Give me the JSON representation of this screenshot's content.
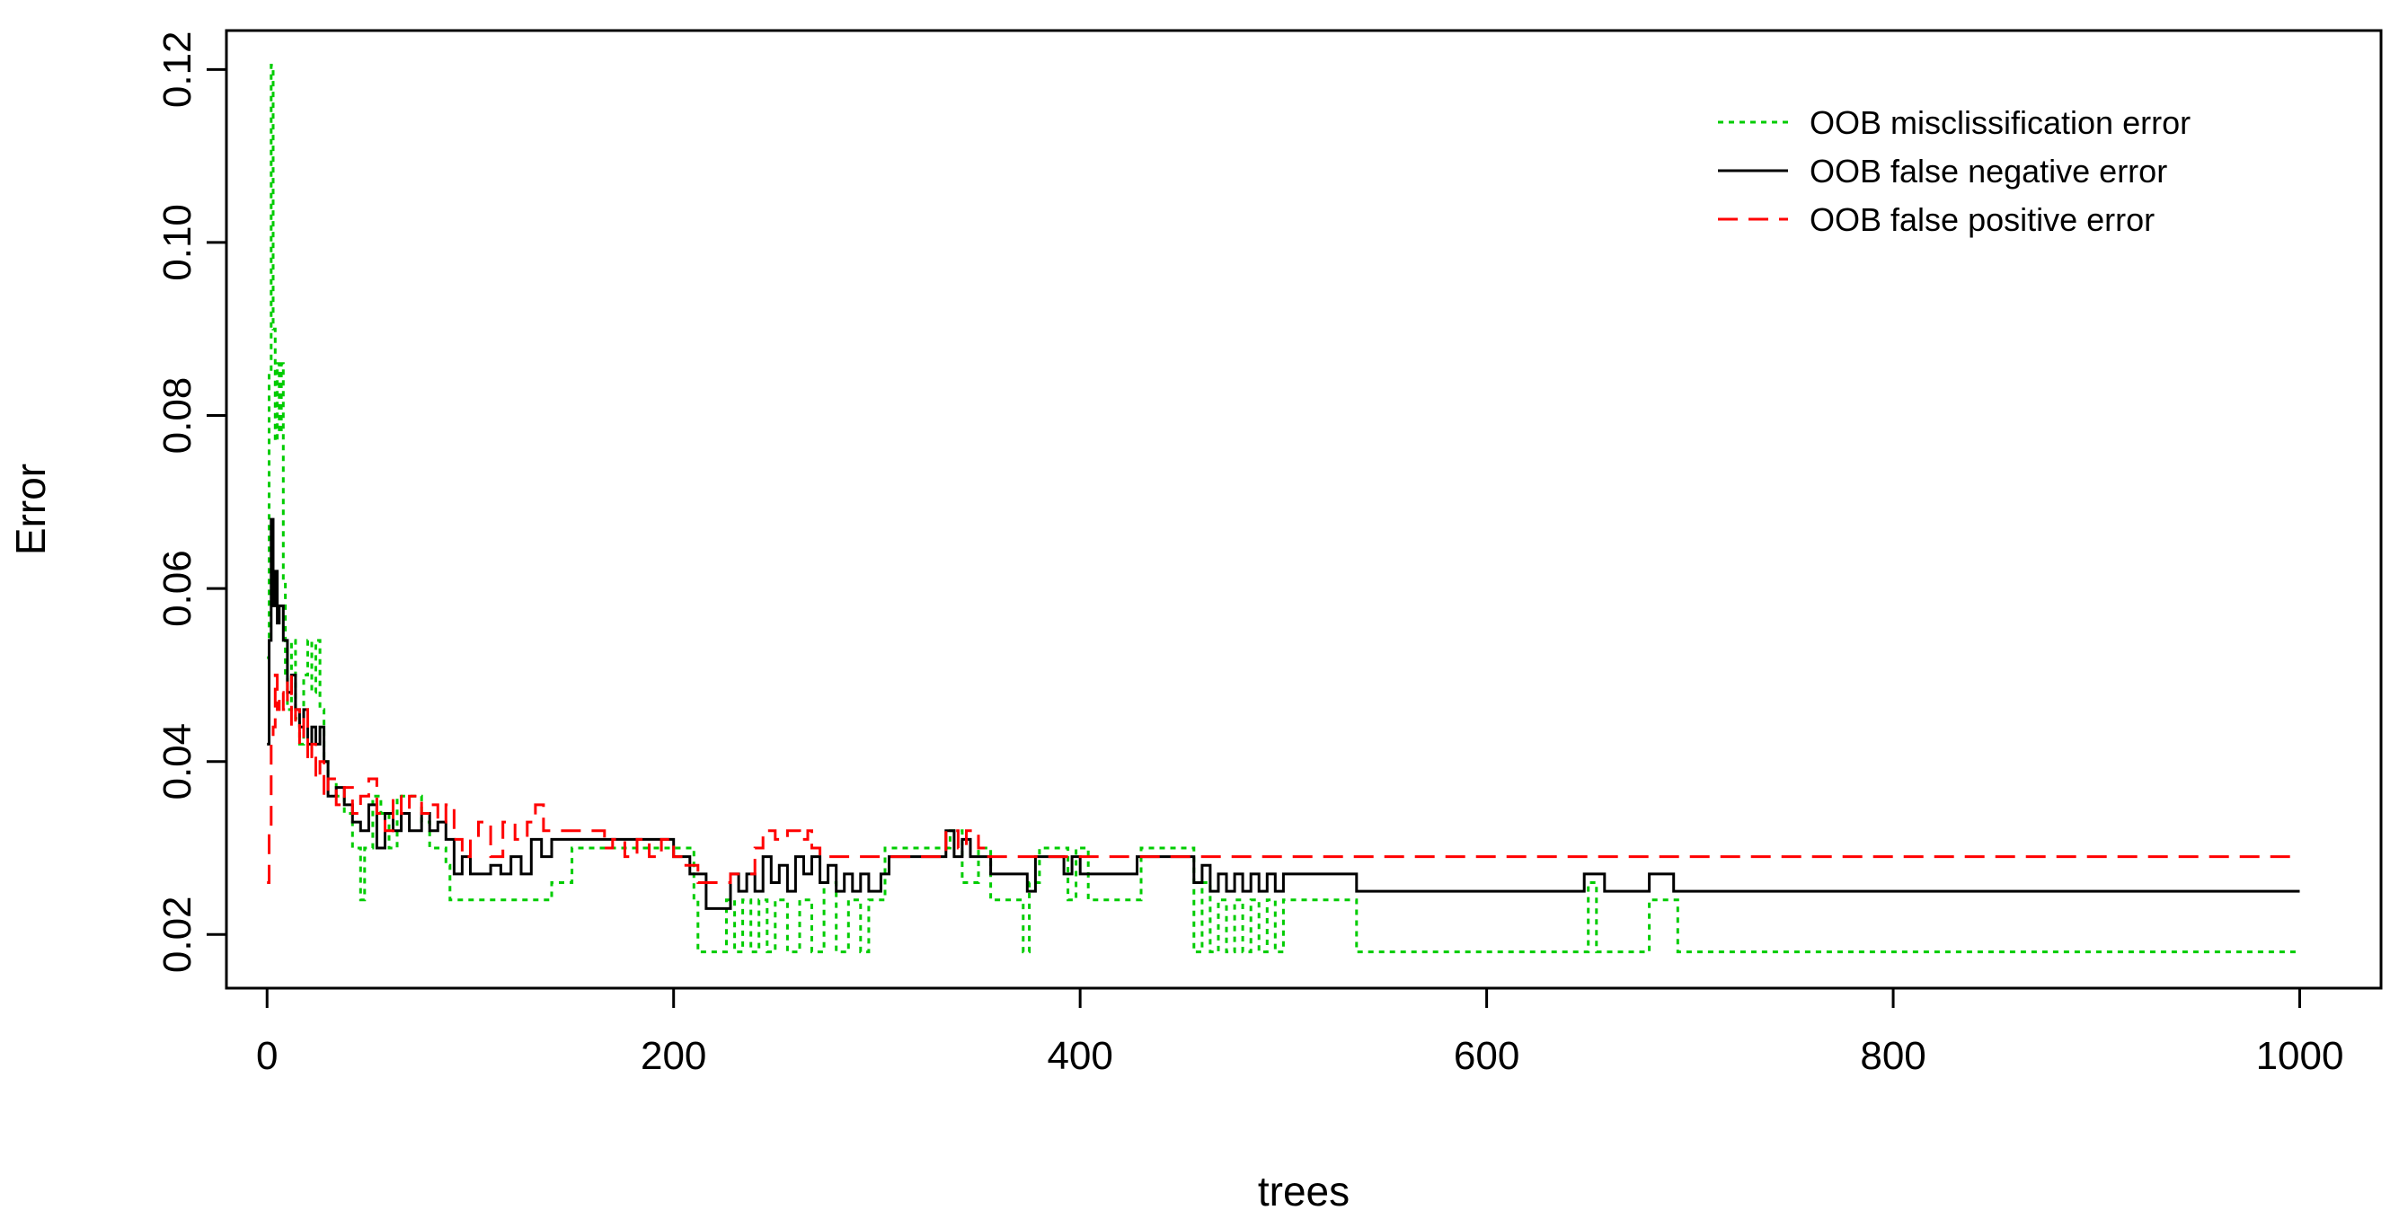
{
  "chart_data": {
    "type": "line",
    "title": "",
    "xlabel": "trees",
    "ylabel": "Error",
    "xlim": [
      -20,
      1040
    ],
    "ylim": [
      0.0138,
      0.1245
    ],
    "xticks": [
      0,
      200,
      400,
      600,
      800,
      1000
    ],
    "yticks": [
      0.02,
      0.04,
      0.06,
      0.08,
      0.1,
      0.12
    ],
    "xtick_labels": [
      "0",
      "200",
      "400",
      "600",
      "800",
      "1000"
    ],
    "ytick_labels": [
      "0.02",
      "0.04",
      "0.06",
      "0.08",
      "0.10",
      "0.12"
    ],
    "grid": false,
    "legend_position": "top-right",
    "series": [
      {
        "name": "OOB misclissification error",
        "color": "#00cc00",
        "dash": "dotted",
        "points": [
          [
            0,
            0.052
          ],
          [
            1,
            0.085
          ],
          [
            2,
            0.1205
          ],
          [
            3,
            0.09
          ],
          [
            4,
            0.077
          ],
          [
            5,
            0.086
          ],
          [
            6,
            0.078
          ],
          [
            7,
            0.086
          ],
          [
            8,
            0.061
          ],
          [
            9,
            0.05
          ],
          [
            10,
            0.046
          ],
          [
            12,
            0.054
          ],
          [
            14,
            0.045
          ],
          [
            16,
            0.042
          ],
          [
            18,
            0.05
          ],
          [
            20,
            0.054
          ],
          [
            22,
            0.048
          ],
          [
            24,
            0.054
          ],
          [
            26,
            0.046
          ],
          [
            28,
            0.04
          ],
          [
            30,
            0.038
          ],
          [
            34,
            0.036
          ],
          [
            38,
            0.034
          ],
          [
            42,
            0.03
          ],
          [
            46,
            0.024
          ],
          [
            48,
            0.03
          ],
          [
            52,
            0.036
          ],
          [
            56,
            0.034
          ],
          [
            60,
            0.03
          ],
          [
            64,
            0.036
          ],
          [
            70,
            0.036
          ],
          [
            76,
            0.033
          ],
          [
            80,
            0.03
          ],
          [
            84,
            0.03
          ],
          [
            88,
            0.028
          ],
          [
            90,
            0.024
          ],
          [
            94,
            0.024
          ],
          [
            100,
            0.024
          ],
          [
            120,
            0.024
          ],
          [
            140,
            0.026
          ],
          [
            150,
            0.03
          ],
          [
            170,
            0.03
          ],
          [
            190,
            0.03
          ],
          [
            205,
            0.03
          ],
          [
            210,
            0.024
          ],
          [
            212,
            0.018
          ],
          [
            222,
            0.018
          ],
          [
            226,
            0.024
          ],
          [
            230,
            0.018
          ],
          [
            234,
            0.024
          ],
          [
            238,
            0.018
          ],
          [
            242,
            0.024
          ],
          [
            246,
            0.018
          ],
          [
            250,
            0.024
          ],
          [
            256,
            0.018
          ],
          [
            262,
            0.024
          ],
          [
            268,
            0.018
          ],
          [
            274,
            0.026
          ],
          [
            280,
            0.018
          ],
          [
            286,
            0.024
          ],
          [
            292,
            0.018
          ],
          [
            296,
            0.024
          ],
          [
            304,
            0.03
          ],
          [
            330,
            0.03
          ],
          [
            336,
            0.032
          ],
          [
            342,
            0.026
          ],
          [
            350,
            0.03
          ],
          [
            356,
            0.024
          ],
          [
            362,
            0.024
          ],
          [
            368,
            0.024
          ],
          [
            372,
            0.018
          ],
          [
            375,
            0.026
          ],
          [
            380,
            0.03
          ],
          [
            390,
            0.03
          ],
          [
            394,
            0.024
          ],
          [
            398,
            0.03
          ],
          [
            404,
            0.024
          ],
          [
            414,
            0.024
          ],
          [
            424,
            0.024
          ],
          [
            430,
            0.03
          ],
          [
            444,
            0.03
          ],
          [
            454,
            0.03
          ],
          [
            456,
            0.018
          ],
          [
            460,
            0.026
          ],
          [
            464,
            0.018
          ],
          [
            468,
            0.024
          ],
          [
            472,
            0.018
          ],
          [
            476,
            0.024
          ],
          [
            480,
            0.018
          ],
          [
            484,
            0.024
          ],
          [
            488,
            0.018
          ],
          [
            492,
            0.024
          ],
          [
            496,
            0.018
          ],
          [
            500,
            0.024
          ],
          [
            534,
            0.024
          ],
          [
            536,
            0.018
          ],
          [
            646,
            0.018
          ],
          [
            650,
            0.026
          ],
          [
            654,
            0.018
          ],
          [
            676,
            0.018
          ],
          [
            680,
            0.024
          ],
          [
            690,
            0.024
          ],
          [
            694,
            0.018
          ],
          [
            1000,
            0.018
          ]
        ]
      },
      {
        "name": "OOB false negative error",
        "color": "#000000",
        "dash": "solid",
        "points": [
          [
            0,
            0.042
          ],
          [
            1,
            0.054
          ],
          [
            2,
            0.068
          ],
          [
            3,
            0.058
          ],
          [
            4,
            0.062
          ],
          [
            5,
            0.056
          ],
          [
            6,
            0.058
          ],
          [
            8,
            0.054
          ],
          [
            10,
            0.048
          ],
          [
            12,
            0.05
          ],
          [
            14,
            0.046
          ],
          [
            16,
            0.044
          ],
          [
            18,
            0.046
          ],
          [
            20,
            0.042
          ],
          [
            22,
            0.044
          ],
          [
            24,
            0.042
          ],
          [
            26,
            0.044
          ],
          [
            28,
            0.04
          ],
          [
            30,
            0.036
          ],
          [
            34,
            0.037
          ],
          [
            38,
            0.035
          ],
          [
            42,
            0.033
          ],
          [
            46,
            0.032
          ],
          [
            50,
            0.035
          ],
          [
            54,
            0.03
          ],
          [
            58,
            0.034
          ],
          [
            62,
            0.032
          ],
          [
            66,
            0.034
          ],
          [
            70,
            0.032
          ],
          [
            76,
            0.034
          ],
          [
            80,
            0.032
          ],
          [
            84,
            0.033
          ],
          [
            88,
            0.031
          ],
          [
            92,
            0.027
          ],
          [
            96,
            0.029
          ],
          [
            100,
            0.027
          ],
          [
            110,
            0.028
          ],
          [
            115,
            0.027
          ],
          [
            120,
            0.029
          ],
          [
            125,
            0.027
          ],
          [
            130,
            0.031
          ],
          [
            135,
            0.029
          ],
          [
            140,
            0.031
          ],
          [
            150,
            0.031
          ],
          [
            175,
            0.031
          ],
          [
            200,
            0.029
          ],
          [
            206,
            0.029
          ],
          [
            208,
            0.027
          ],
          [
            214,
            0.027
          ],
          [
            216,
            0.023
          ],
          [
            226,
            0.023
          ],
          [
            228,
            0.027
          ],
          [
            232,
            0.025
          ],
          [
            236,
            0.027
          ],
          [
            240,
            0.025
          ],
          [
            244,
            0.029
          ],
          [
            248,
            0.026
          ],
          [
            252,
            0.028
          ],
          [
            256,
            0.025
          ],
          [
            260,
            0.029
          ],
          [
            264,
            0.027
          ],
          [
            268,
            0.029
          ],
          [
            272,
            0.026
          ],
          [
            276,
            0.028
          ],
          [
            280,
            0.025
          ],
          [
            284,
            0.027
          ],
          [
            288,
            0.025
          ],
          [
            292,
            0.027
          ],
          [
            296,
            0.025
          ],
          [
            302,
            0.027
          ],
          [
            306,
            0.029
          ],
          [
            330,
            0.029
          ],
          [
            334,
            0.032
          ],
          [
            338,
            0.029
          ],
          [
            342,
            0.031
          ],
          [
            346,
            0.029
          ],
          [
            350,
            0.029
          ],
          [
            356,
            0.027
          ],
          [
            370,
            0.027
          ],
          [
            374,
            0.025
          ],
          [
            378,
            0.029
          ],
          [
            388,
            0.029
          ],
          [
            392,
            0.027
          ],
          [
            396,
            0.029
          ],
          [
            400,
            0.027
          ],
          [
            420,
            0.027
          ],
          [
            428,
            0.029
          ],
          [
            440,
            0.029
          ],
          [
            450,
            0.029
          ],
          [
            456,
            0.026
          ],
          [
            460,
            0.028
          ],
          [
            464,
            0.025
          ],
          [
            468,
            0.027
          ],
          [
            472,
            0.025
          ],
          [
            476,
            0.027
          ],
          [
            480,
            0.025
          ],
          [
            484,
            0.027
          ],
          [
            488,
            0.025
          ],
          [
            492,
            0.027
          ],
          [
            496,
            0.025
          ],
          [
            500,
            0.027
          ],
          [
            530,
            0.027
          ],
          [
            536,
            0.025
          ],
          [
            646,
            0.025
          ],
          [
            648,
            0.027
          ],
          [
            656,
            0.027
          ],
          [
            658,
            0.025
          ],
          [
            678,
            0.025
          ],
          [
            680,
            0.027
          ],
          [
            690,
            0.027
          ],
          [
            692,
            0.025
          ],
          [
            1000,
            0.025
          ]
        ]
      },
      {
        "name": "OOB false positive error",
        "color": "#ff0000",
        "dash": "dashed",
        "points": [
          [
            0,
            0.026
          ],
          [
            1,
            0.032
          ],
          [
            2,
            0.042
          ],
          [
            3,
            0.044
          ],
          [
            4,
            0.05
          ],
          [
            5,
            0.046
          ],
          [
            6,
            0.048
          ],
          [
            8,
            0.046
          ],
          [
            10,
            0.05
          ],
          [
            12,
            0.044
          ],
          [
            14,
            0.046
          ],
          [
            16,
            0.042
          ],
          [
            18,
            0.046
          ],
          [
            20,
            0.04
          ],
          [
            22,
            0.042
          ],
          [
            24,
            0.038
          ],
          [
            26,
            0.04
          ],
          [
            28,
            0.036
          ],
          [
            30,
            0.038
          ],
          [
            34,
            0.035
          ],
          [
            38,
            0.037
          ],
          [
            42,
            0.034
          ],
          [
            46,
            0.036
          ],
          [
            50,
            0.038
          ],
          [
            54,
            0.034
          ],
          [
            58,
            0.032
          ],
          [
            62,
            0.036
          ],
          [
            66,
            0.034
          ],
          [
            70,
            0.036
          ],
          [
            76,
            0.034
          ],
          [
            80,
            0.035
          ],
          [
            84,
            0.033
          ],
          [
            88,
            0.035
          ],
          [
            92,
            0.031
          ],
          [
            96,
            0.029
          ],
          [
            100,
            0.031
          ],
          [
            104,
            0.033
          ],
          [
            110,
            0.029
          ],
          [
            116,
            0.033
          ],
          [
            122,
            0.031
          ],
          [
            128,
            0.033
          ],
          [
            132,
            0.035
          ],
          [
            136,
            0.032
          ],
          [
            142,
            0.032
          ],
          [
            160,
            0.032
          ],
          [
            166,
            0.03
          ],
          [
            170,
            0.031
          ],
          [
            176,
            0.029
          ],
          [
            182,
            0.031
          ],
          [
            188,
            0.029
          ],
          [
            194,
            0.031
          ],
          [
            200,
            0.029
          ],
          [
            206,
            0.028
          ],
          [
            212,
            0.026
          ],
          [
            224,
            0.026
          ],
          [
            228,
            0.027
          ],
          [
            236,
            0.027
          ],
          [
            240,
            0.03
          ],
          [
            244,
            0.032
          ],
          [
            250,
            0.031
          ],
          [
            256,
            0.032
          ],
          [
            262,
            0.031
          ],
          [
            266,
            0.032
          ],
          [
            268,
            0.03
          ],
          [
            272,
            0.029
          ],
          [
            300,
            0.029
          ],
          [
            306,
            0.029
          ],
          [
            330,
            0.029
          ],
          [
            334,
            0.032
          ],
          [
            340,
            0.03
          ],
          [
            344,
            0.032
          ],
          [
            350,
            0.03
          ],
          [
            354,
            0.029
          ],
          [
            1000,
            0.029
          ]
        ]
      }
    ]
  }
}
